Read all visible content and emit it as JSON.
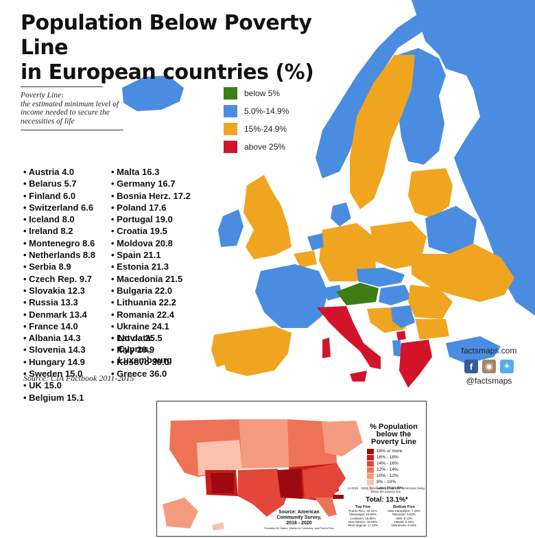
{
  "title_line1": "Population Below Poverty Line",
  "title_line2": "in European countries (%)",
  "definition": {
    "term": "Poverty Line:",
    "text": "the estimated minimum level of income needed to secure the necessities of life"
  },
  "legend": [
    {
      "label": "below 5%",
      "color": "#3e7d12"
    },
    {
      "label": "5.0%-14.9%",
      "color": "#4a8de0"
    },
    {
      "label": "15%-24.9%",
      "color": "#f0a520"
    },
    {
      "label": "above 25%",
      "color": "#d3132a"
    }
  ],
  "countries_col1": [
    "Austria 4.0",
    "Belarus 5.7",
    "Finland 6.0",
    "Switzerland 6.6",
    "Iceland 8.0",
    "Ireland 8.2",
    "Montenegro 8.6",
    "Netherlands 8.8",
    "Serbia 8.9",
    "Czech Rep. 9.7",
    "Slovakia 12.3",
    "Russia 13.3",
    "Denmark 13.4",
    "France 14.0",
    "Albania 14.3",
    "Slovenia 14.3",
    "Hungary 14.9",
    "Sweden 15.0",
    "UK 15.0",
    "Belgium 15.1"
  ],
  "countries_col2": [
    "Malta 16.3",
    "Germany 16.7",
    "Bosnia Herz. 17.2",
    "Poland 17.6",
    "Portugal 19.0",
    "Croatia 19.5",
    "Moldova 20.8",
    "Spain 21.1",
    "Estonia 21.3",
    "Macedonia 21.5",
    "Bulgaria 22.0",
    "Lithuania 22.2",
    "Romania 22.4",
    "Ukraine 24.1",
    "Latvia 25.5",
    "Italy 29.9",
    "Kosovo 30.0",
    "Greece 36.0"
  ],
  "no_data": {
    "label": "No data:",
    "items": [
      "Cyprus,",
      "Luxembourg"
    ]
  },
  "source": "Source: CIA Factbook 2011-2015",
  "brand": {
    "site": "factsmaps.com",
    "handle": "@factsmaps"
  },
  "inset": {
    "title_lines": [
      "% Population",
      "below the",
      "Poverty Line"
    ],
    "legend": [
      {
        "label": "18% or more",
        "color": "#9e0a10"
      },
      {
        "label": "16% - 18%",
        "color": "#c81d1d"
      },
      {
        "label": "14% - 16%",
        "color": "#e2473a"
      },
      {
        "label": "12% - 14%",
        "color": "#ee7356"
      },
      {
        "label": "10% - 12%",
        "color": "#f59b80"
      },
      {
        "label": "8% - 10%",
        "color": "#f9c2ad"
      },
      {
        "label": "Less than 8%",
        "color": "#fde5da"
      }
    ],
    "note": "In 2016 - 2020, there were 42,311,204* Americans living below the poverty line.",
    "total": "Total: 13.1%*",
    "top_five_title": "Top Five",
    "top_five": [
      "Puerto Rico: 43.41%",
      "Mississippi: 19.58%",
      "Louisiana: 18.65%",
      "New Mexico: 18.55%",
      "West Virginia: 17.10%"
    ],
    "bottom_five_title": "Bottom Five",
    "bottom_five": [
      "New Hampshire: 7.42%",
      "Maryland: 9.02%",
      "Utah: 9.13%",
      "Hawaii: 9.26%",
      "Minnesota: 9.33%"
    ],
    "source_lines": [
      "Source: American",
      "Community Survey,",
      "2016 - 2020"
    ],
    "source_note": "*Includes 50 States, District of Columbia, and Puerto Rico"
  }
}
